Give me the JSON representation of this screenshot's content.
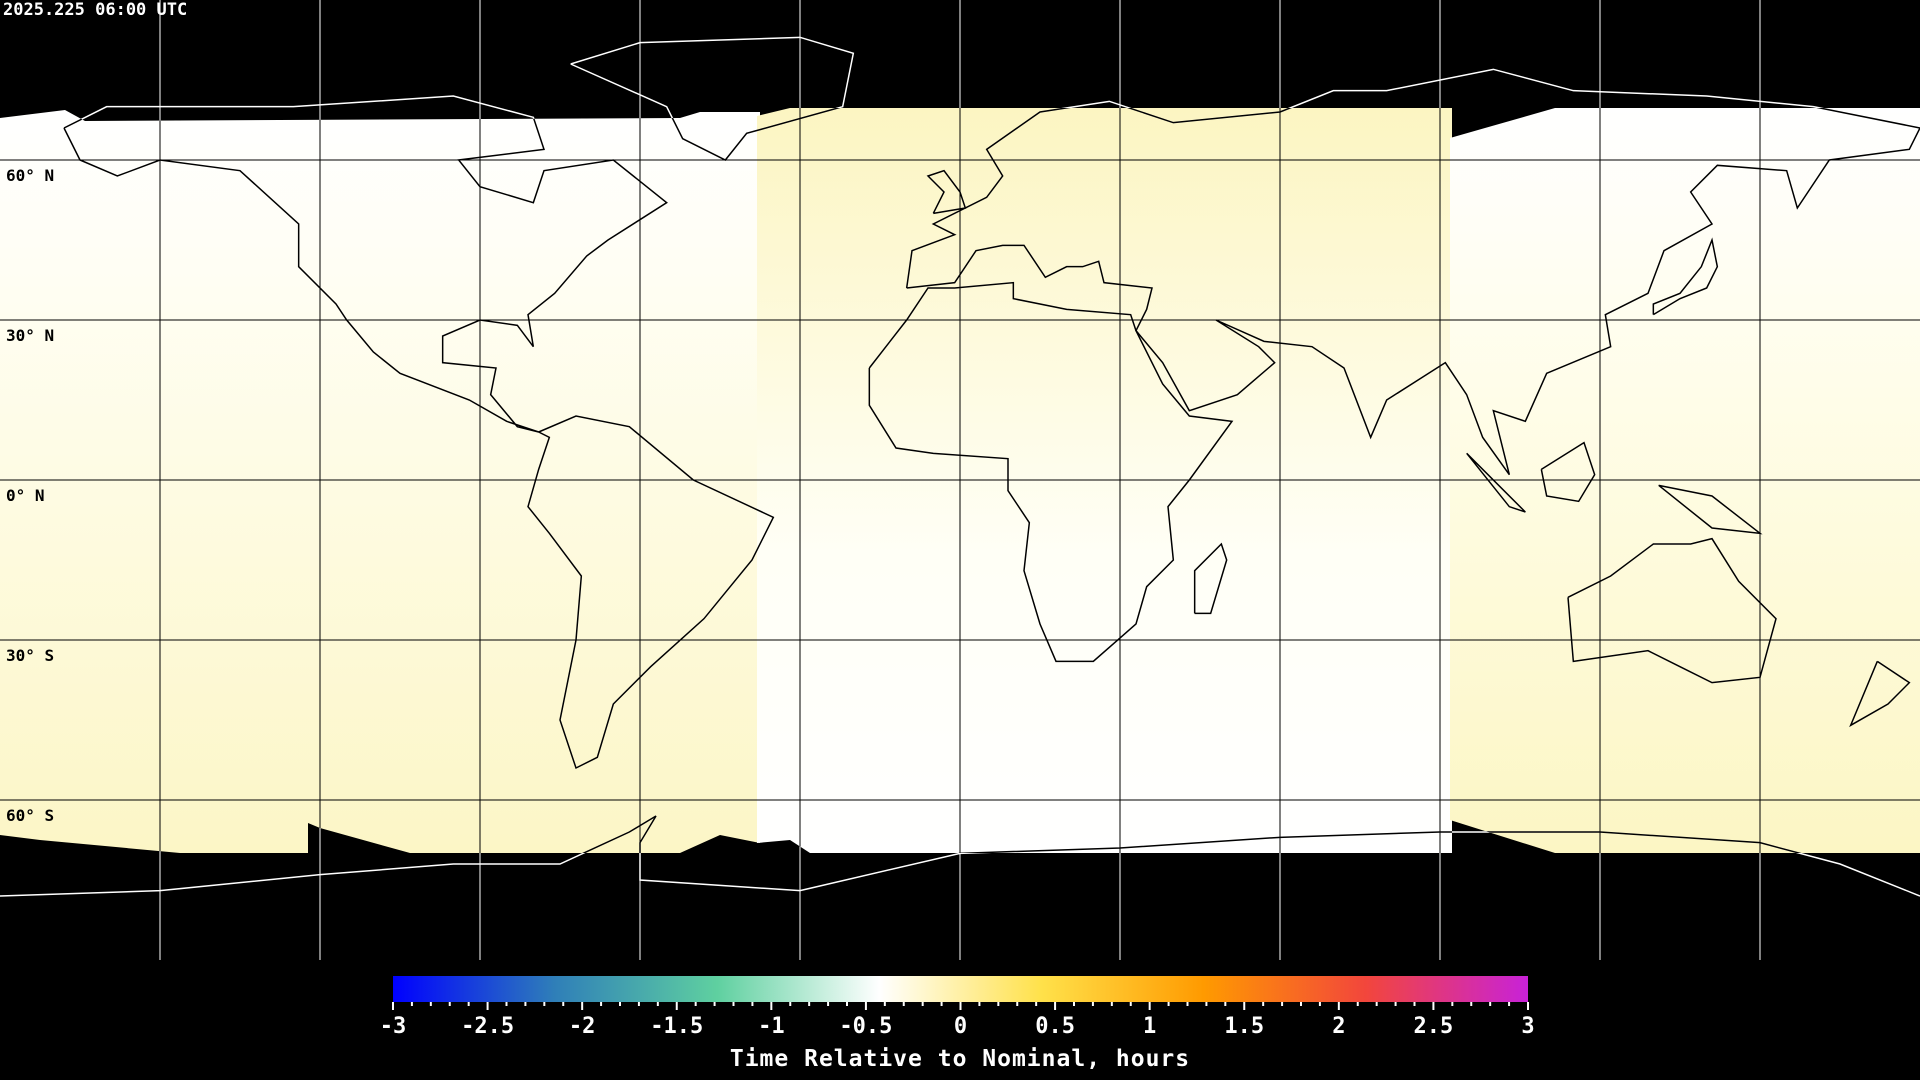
{
  "header": {
    "timestamp": "2025.225 06:00 UTC"
  },
  "map": {
    "projection": "equirectangular",
    "lon_range": [
      -180,
      180
    ],
    "lat_range": [
      -90,
      90
    ],
    "grid_spacing_deg": 30,
    "lat_labels": [
      {
        "lat": 60,
        "text": "60° N"
      },
      {
        "lat": 30,
        "text": "30° N"
      },
      {
        "lat": 0,
        "text": "0° N"
      },
      {
        "lat": -30,
        "text": "30° S"
      },
      {
        "lat": -60,
        "text": "60° S"
      }
    ],
    "no_data_color": "#000000"
  },
  "colorbar": {
    "title": "Time Relative to Nominal, hours",
    "range": [
      -3,
      3
    ],
    "ticks": [
      "-3",
      "-2.5",
      "-2",
      "-1.5",
      "-1",
      "-0.5",
      "0",
      "0.5",
      "1",
      "1.5",
      "2",
      "2.5",
      "3"
    ],
    "colors": [
      "#0000ff",
      "#2f7fb8",
      "#5fd0a0",
      "#ffffff",
      "#ffe14a",
      "#ff9a00",
      "#f2463c",
      "#c822d8"
    ]
  }
}
